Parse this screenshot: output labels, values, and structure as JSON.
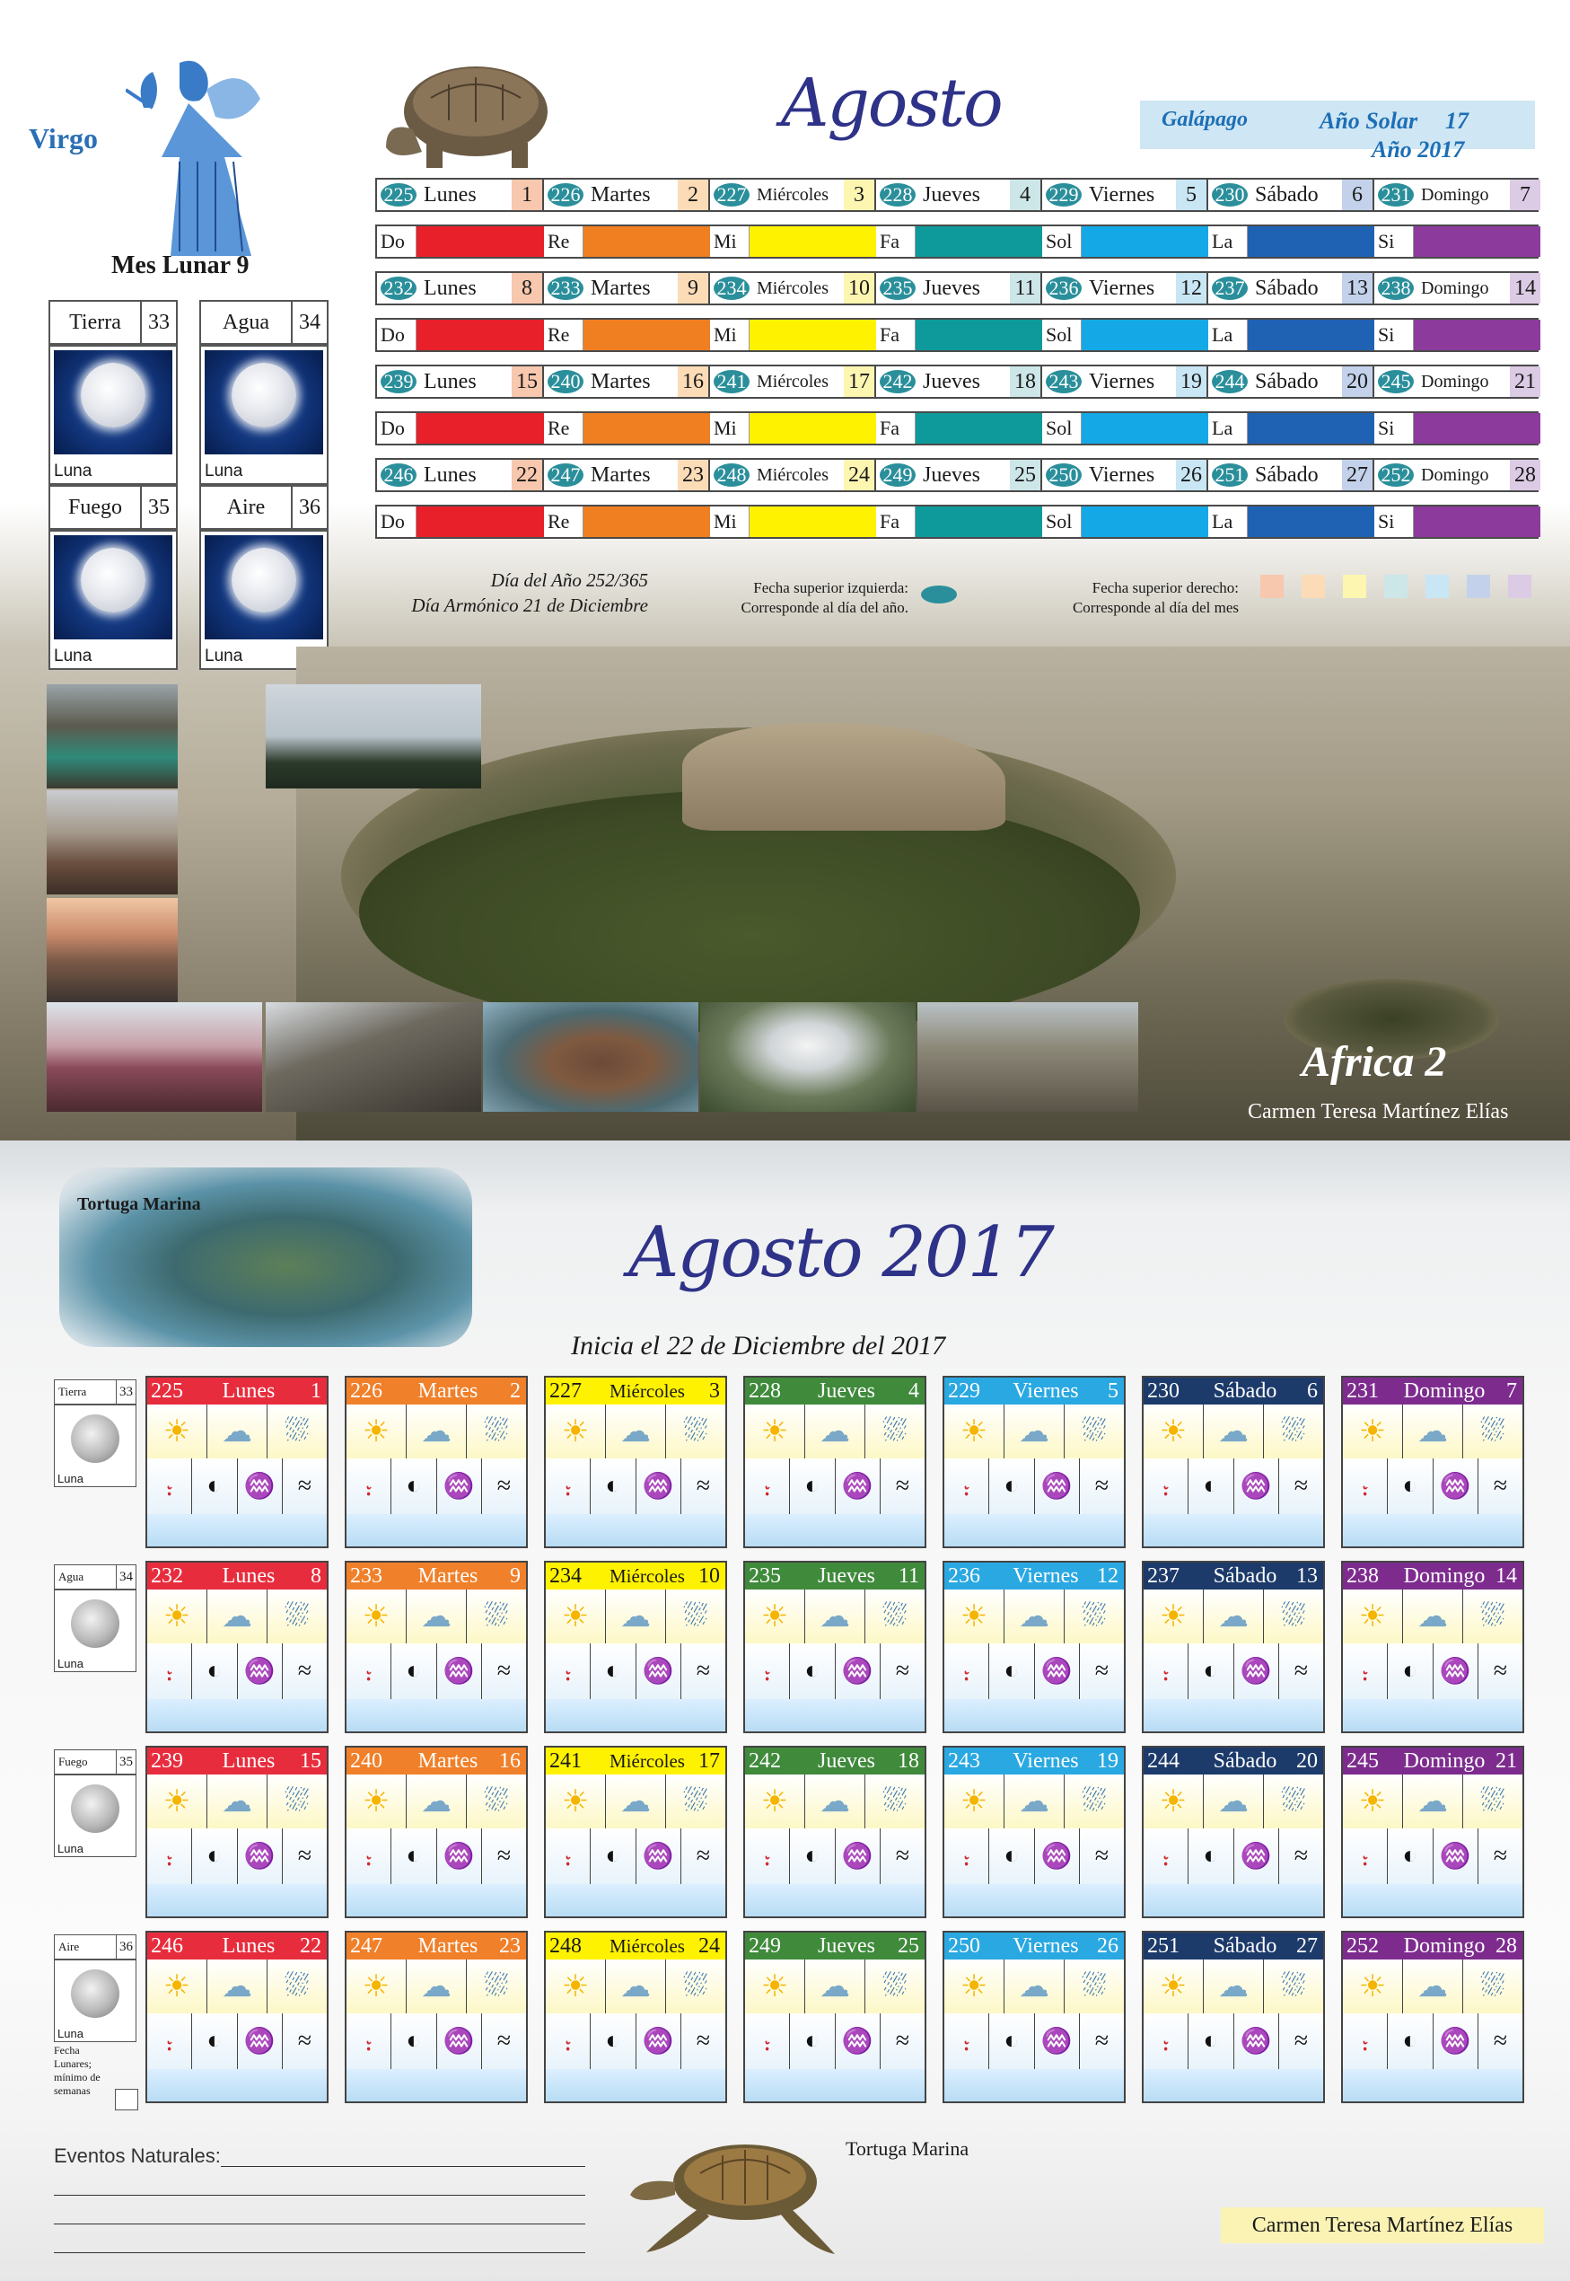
{
  "zodiac": {
    "label": "Virgo",
    "mes_lunar": "Mes Lunar 9"
  },
  "elements": [
    {
      "name": "Tierra",
      "num": "33",
      "moon_label": "Luna"
    },
    {
      "name": "Agua",
      "num": "34",
      "moon_label": "Luna"
    },
    {
      "name": "Fuego",
      "num": "35",
      "moon_label": "Luna"
    },
    {
      "name": "Aire",
      "num": "36",
      "moon_label": "Luna"
    }
  ],
  "header": {
    "title": "Agosto",
    "solar_place": "Galápago",
    "solar_label": "Año Solar",
    "solar_num": "17",
    "year": "Año 2017"
  },
  "weeks": [
    {
      "days": [
        {
          "n": "225",
          "name": "Lunes",
          "d": "1"
        },
        {
          "n": "226",
          "name": "Martes",
          "d": "2"
        },
        {
          "n": "227",
          "name": "Miércoles",
          "d": "3"
        },
        {
          "n": "228",
          "name": "Jueves",
          "d": "4"
        },
        {
          "n": "229",
          "name": "Viernes",
          "d": "5"
        },
        {
          "n": "230",
          "name": "Sábado",
          "d": "6"
        },
        {
          "n": "231",
          "name": "Domingo",
          "d": "7"
        }
      ]
    },
    {
      "days": [
        {
          "n": "232",
          "name": "Lunes",
          "d": "8"
        },
        {
          "n": "233",
          "name": "Martes",
          "d": "9"
        },
        {
          "n": "234",
          "name": "Miércoles",
          "d": "10"
        },
        {
          "n": "235",
          "name": "Jueves",
          "d": "11"
        },
        {
          "n": "236",
          "name": "Viernes",
          "d": "12"
        },
        {
          "n": "237",
          "name": "Sábado",
          "d": "13"
        },
        {
          "n": "238",
          "name": "Domingo",
          "d": "14"
        }
      ]
    },
    {
      "days": [
        {
          "n": "239",
          "name": "Lunes",
          "d": "15"
        },
        {
          "n": "240",
          "name": "Martes",
          "d": "16"
        },
        {
          "n": "241",
          "name": "Miércoles",
          "d": "17"
        },
        {
          "n": "242",
          "name": "Jueves",
          "d": "18"
        },
        {
          "n": "243",
          "name": "Viernes",
          "d": "19"
        },
        {
          "n": "244",
          "name": "Sábado",
          "d": "20"
        },
        {
          "n": "245",
          "name": "Domingo",
          "d": "21"
        }
      ]
    },
    {
      "days": [
        {
          "n": "246",
          "name": "Lunes",
          "d": "22"
        },
        {
          "n": "247",
          "name": "Martes",
          "d": "23"
        },
        {
          "n": "248",
          "name": "Miércoles",
          "d": "24"
        },
        {
          "n": "249",
          "name": "Jueves",
          "d": "25"
        },
        {
          "n": "250",
          "name": "Viernes",
          "d": "26"
        },
        {
          "n": "251",
          "name": "Sábado",
          "d": "27"
        },
        {
          "n": "252",
          "name": "Domingo",
          "d": "28"
        }
      ]
    }
  ],
  "notes": [
    "Do",
    "Re",
    "Mi",
    "Fa",
    "Sol",
    "La",
    "Si"
  ],
  "colors": {
    "note_colors": [
      "#e8202a",
      "#f07f22",
      "#fff200",
      "#0e9a9b",
      "#14a9e6",
      "#1f62b4",
      "#8c3b9d"
    ],
    "day_num_colors": [
      "#f7c7ae",
      "#fbdcb7",
      "#fcf6b1",
      "#cde6e8",
      "#c9e6f4",
      "#c3d2ea",
      "#dccbe5"
    ],
    "header_colors": [
      "#e72d3d",
      "#f0802a",
      "#fff200",
      "#3f8a3b",
      "#2aa8e1",
      "#1c3a6a",
      "#7d2c8e"
    ],
    "bubble": "#2a8f9b",
    "title": "#2e3288"
  },
  "legend": {
    "dia_anio": "Día del Año 252/365",
    "dia_armonico": "Día Armónico 21 de Diciembre",
    "izq_1": "Fecha superior izquierda:",
    "izq_2": "Corresponde al día del año.",
    "der_1": "Fecha superior derecho:",
    "der_2": "Corresponde al día del mes"
  },
  "photo": {
    "caption": "Africa 2",
    "author": "Carmen Teresa Martínez Elías"
  },
  "bottom": {
    "title": "Agosto 2017",
    "inicia": "Inicia el 22 de Diciembre del 2017",
    "tortuga_top": "Tortuga Marina",
    "tortuga_bottom": "Tortuga Marina",
    "fecha_note": "Fecha Lunares; mínimo de semanas",
    "eventos": "Eventos Naturales:",
    "author": "Carmen Teresa Martínez Elías"
  },
  "icons": {
    "row1": [
      "sun-icon",
      "cloud-icon",
      "rain-cloud-icon"
    ],
    "row2": [
      "thermometer-sun-icon",
      "moon-phase-icon",
      "palm-tree-icon",
      "wind-icon"
    ]
  }
}
